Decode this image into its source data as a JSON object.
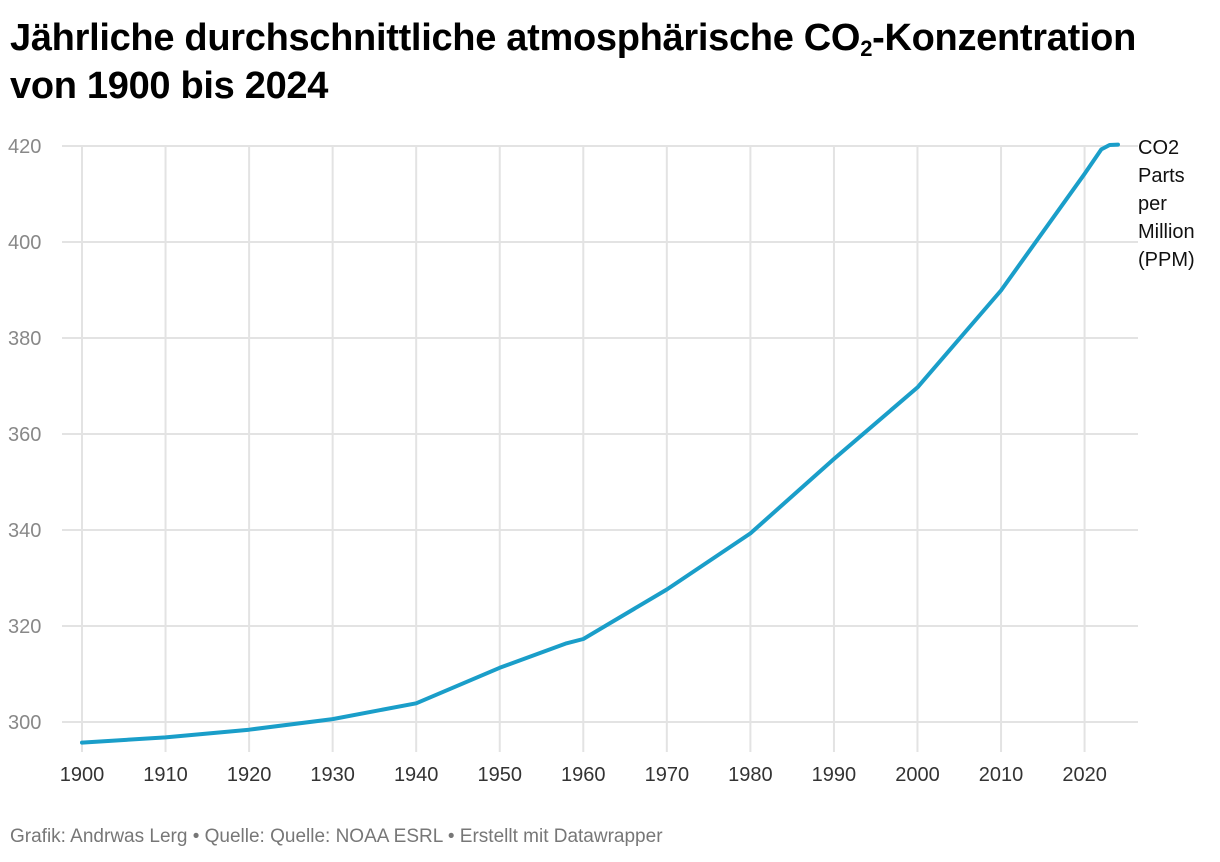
{
  "title": {
    "part1": "Jährliche durchschnittliche atmosphärische CO",
    "sub": "2",
    "part2": "-Konzentration von 1900 bis 2024"
  },
  "footer": "Grafik: Andrwas Lerg • Quelle: Quelle: NOAA ESRL • Erstellt mit Datawrapper",
  "colors": {
    "line": "#1a9ec9",
    "grid": "#e3e3e3"
  },
  "chart_data": {
    "type": "line",
    "title": "Jährliche durchschnittliche atmosphärische CO2-Konzentration von 1900 bis 2024",
    "xlabel": "",
    "ylabel": "",
    "xlim": [
      1900,
      2024
    ],
    "ylim": [
      295,
      420
    ],
    "x_ticks": [
      1900,
      1910,
      1920,
      1930,
      1940,
      1950,
      1960,
      1970,
      1980,
      1990,
      2000,
      2010,
      2020
    ],
    "y_ticks": [
      300,
      320,
      340,
      360,
      380,
      400,
      420
    ],
    "grid": true,
    "series": [
      {
        "name": "CO2 Parts per Million (PPM)",
        "x": [
          1900,
          1910,
          1920,
          1930,
          1940,
          1950,
          1958,
          1960,
          1970,
          1980,
          1990,
          2000,
          2010,
          2020,
          2022,
          2023,
          2024
        ],
        "y": [
          295.7,
          296.8,
          298.4,
          300.6,
          303.9,
          311.3,
          316.4,
          317.3,
          327.6,
          339.3,
          354.8,
          369.7,
          389.9,
          414.2,
          419.3,
          420.2,
          420.3
        ]
      }
    ]
  }
}
